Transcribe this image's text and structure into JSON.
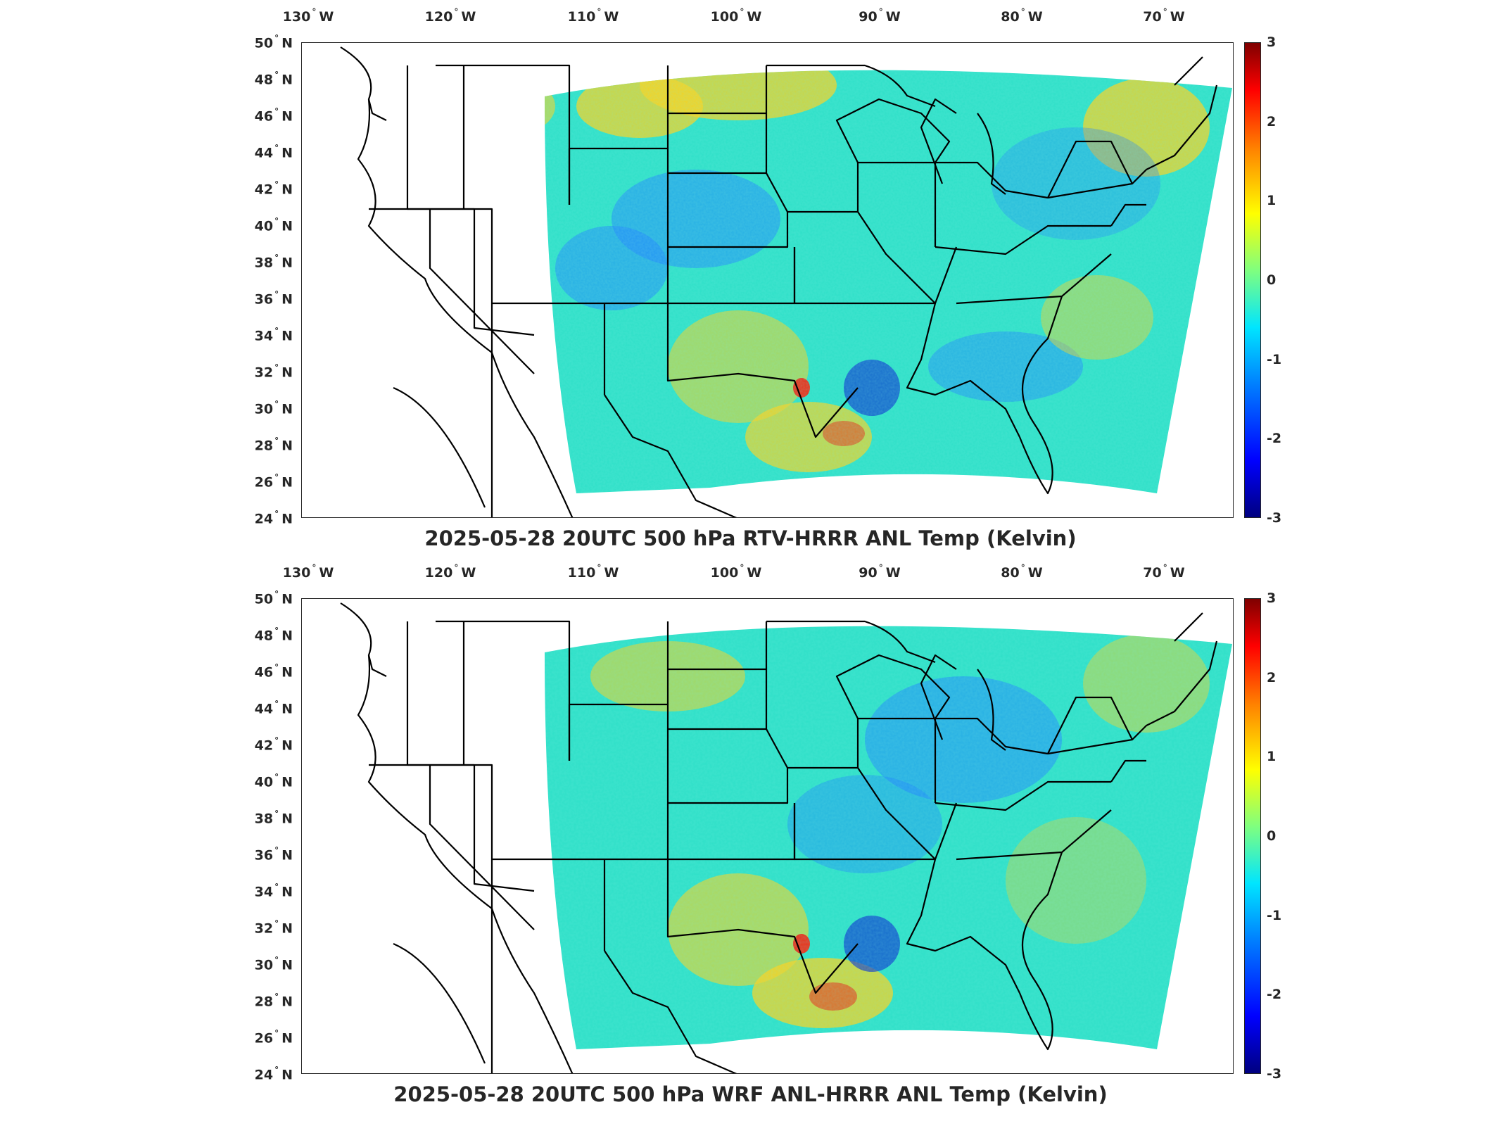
{
  "panels": [
    {
      "title": "2025-05-28 20UTC 500 hPa RTV-HRRR ANL Temp (Kelvin)",
      "colorbar": {
        "min": -3,
        "max": 3,
        "ticks": [
          "3",
          "2",
          "1",
          "0",
          "-1",
          "-2",
          "-3"
        ],
        "colormap": "jet"
      }
    },
    {
      "title": "2025-05-28 20UTC 500 hPa WRF ANL-HRRR ANL Temp (Kelvin)",
      "colorbar": {
        "min": -3,
        "max": 3,
        "ticks": [
          "3",
          "2",
          "1",
          "0",
          "-1",
          "-2",
          "-3"
        ],
        "colormap": "jet"
      }
    }
  ],
  "axes": {
    "lon_ticks": [
      {
        "value": "130",
        "hemi": "W"
      },
      {
        "value": "120",
        "hemi": "W"
      },
      {
        "value": "110",
        "hemi": "W"
      },
      {
        "value": "100",
        "hemi": "W"
      },
      {
        "value": "90",
        "hemi": "W"
      },
      {
        "value": "80",
        "hemi": "W"
      },
      {
        "value": "70",
        "hemi": "W"
      }
    ],
    "lat_ticks": [
      {
        "value": "50",
        "hemi": "N"
      },
      {
        "value": "48",
        "hemi": "N"
      },
      {
        "value": "46",
        "hemi": "N"
      },
      {
        "value": "44",
        "hemi": "N"
      },
      {
        "value": "42",
        "hemi": "N"
      },
      {
        "value": "40",
        "hemi": "N"
      },
      {
        "value": "38",
        "hemi": "N"
      },
      {
        "value": "36",
        "hemi": "N"
      },
      {
        "value": "34",
        "hemi": "N"
      },
      {
        "value": "32",
        "hemi": "N"
      },
      {
        "value": "30",
        "hemi": "N"
      },
      {
        "value": "28",
        "hemi": "N"
      },
      {
        "value": "26",
        "hemi": "N"
      },
      {
        "value": "24",
        "hemi": "N"
      }
    ]
  },
  "colors": {
    "field_background": "#2ee0c8",
    "warm_anomaly": "#ffd21a",
    "hot_anomaly": "#e8321a",
    "cold_anomaly": "#1f7fff",
    "very_cold_anomaly": "#0a2fd0",
    "outline": "#000000"
  }
}
